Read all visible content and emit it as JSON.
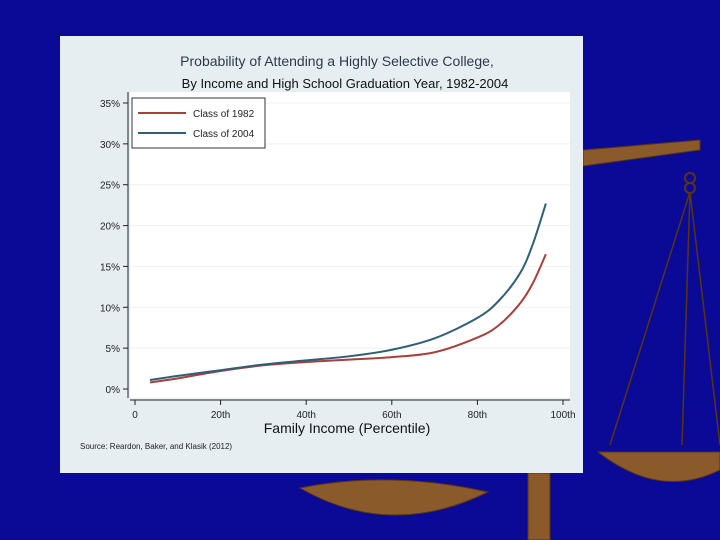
{
  "colors": {
    "background": "#0a0a96",
    "scale": "#8b5a2b",
    "panel": "#e7eef2"
  },
  "chart_data": {
    "type": "line",
    "title": "Probability of Attending a Highly Selective College,",
    "subtitle": "By Income and High School Graduation Year, 1982-2004",
    "xlabel": "Family Income (Percentile)",
    "ylabel": "",
    "xlim": [
      0,
      100
    ],
    "ylim": [
      0,
      35
    ],
    "x_ticks": [
      0,
      20,
      40,
      60,
      80,
      100
    ],
    "x_tick_labels": [
      "0",
      "20th",
      "40th",
      "60th",
      "80th",
      "100th"
    ],
    "y_ticks": [
      0,
      5,
      10,
      15,
      20,
      25,
      30,
      35
    ],
    "y_tick_labels": [
      "0%",
      "5%",
      "10%",
      "15%",
      "20%",
      "25%",
      "30%",
      "35%"
    ],
    "grid": "horizontal",
    "legend_position": "top-left",
    "source": "Source: Reardon, Baker, and Klasik (2012)",
    "series": [
      {
        "name": "Class of 1982",
        "color": "#a8403c",
        "x": [
          3.5,
          10,
          20,
          30,
          40,
          50,
          60,
          70,
          80,
          85,
          90,
          93,
          96
        ],
        "y": [
          0.8,
          1.3,
          2.2,
          2.9,
          3.3,
          3.6,
          3.9,
          4.5,
          6.3,
          7.8,
          10.5,
          13.0,
          16.5
        ]
      },
      {
        "name": "Class of 2004",
        "color": "#2f5f78",
        "x": [
          3.5,
          10,
          20,
          30,
          40,
          50,
          60,
          70,
          80,
          85,
          90,
          93,
          96
        ],
        "y": [
          1.1,
          1.6,
          2.3,
          3.0,
          3.5,
          4.0,
          4.8,
          6.2,
          8.7,
          10.8,
          14.2,
          17.8,
          22.7
        ]
      }
    ]
  }
}
